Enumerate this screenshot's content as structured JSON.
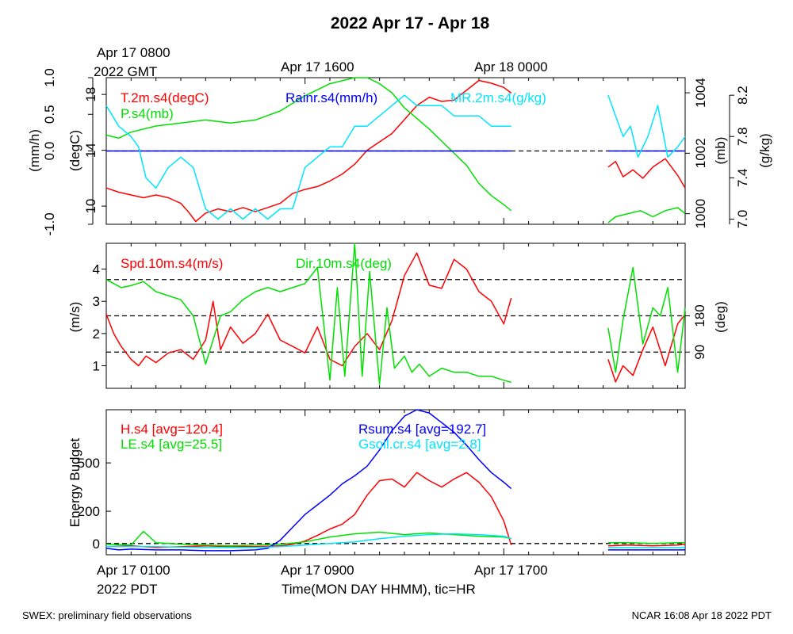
{
  "title": "2022 Apr 17 - Apr 18",
  "footer": {
    "left": "SWEX: preliminary field observations",
    "right": "NCAR 16:08 Apr 18 2022 PDT"
  },
  "top_axis": {
    "labels": [
      "Apr 17 0800",
      "Apr 17 1600",
      "Apr 18 0000"
    ],
    "sublabel": "2022 GMT"
  },
  "bottom_axis": {
    "labels": [
      "Apr 17 0100",
      "Apr 17 0900",
      "Apr 17 1700"
    ],
    "sublabel": "2022 PDT",
    "title": "Time(MON DAY HHMM), tic=HR"
  },
  "colors": {
    "red": "#ff0000",
    "green": "#00e000",
    "blue": "#0000ff",
    "cyan": "#00e5ff"
  },
  "chart_data": [
    {
      "type": "line",
      "panel": "top",
      "x_unit": "hours since Apr 17 0100 PDT",
      "xlim": [
        0,
        23.3
      ],
      "data_gap": [
        16.3,
        20.2
      ],
      "axes": [
        {
          "side": "left-outer",
          "label": "(mm/h)",
          "lim": [
            -1.0,
            1.0
          ],
          "ticks": [
            "-1.0",
            "0.0",
            "0.5",
            "1.0"
          ],
          "tick_values": [
            -1.0,
            0.0,
            0.5,
            1.0
          ]
        },
        {
          "side": "left-inner",
          "label": "(degC)",
          "lim": [
            8.7,
            19.2
          ],
          "ticks": [
            "10",
            "14",
            "18"
          ],
          "tick_values": [
            10,
            14,
            18
          ]
        },
        {
          "side": "right-inner",
          "label": "(mb)",
          "lim": [
            999.65,
            1004.5
          ],
          "ticks": [
            "1000",
            "1002",
            "1004"
          ],
          "tick_values": [
            1000,
            1002,
            1004
          ]
        },
        {
          "side": "right-outer",
          "label": "(g/kg)",
          "lim": [
            6.95,
            8.37
          ],
          "ticks": [
            "7.0",
            "7.4",
            "7.8",
            "8.2"
          ],
          "tick_values": [
            7.0,
            7.4,
            7.8,
            8.2
          ]
        }
      ],
      "series": [
        {
          "name": "T.2m.s4(degC)",
          "color": "#ff0000",
          "axis": 1,
          "x": [
            0,
            0.5,
            1,
            1.5,
            2,
            2.5,
            3,
            3.3,
            3.6,
            4,
            4.5,
            5,
            5.5,
            6,
            6.5,
            7,
            7.5,
            8,
            8.5,
            9,
            9.5,
            10,
            10.5,
            11,
            11.5,
            12,
            12.5,
            13,
            13.5,
            14,
            14.5,
            15,
            15.5,
            16,
            16.3,
            20.2,
            20.5,
            20.8,
            21.2,
            21.6,
            22,
            22.5,
            23,
            23.3
          ],
          "y": [
            11.3,
            11.0,
            10.8,
            10.6,
            10.8,
            10.6,
            10.2,
            9.6,
            8.9,
            9.5,
            9.8,
            9.6,
            9.9,
            9.6,
            9.9,
            10.2,
            10.9,
            11.2,
            11.4,
            11.8,
            12.3,
            13.0,
            14.0,
            14.6,
            15.2,
            16.2,
            17.2,
            17.8,
            17.5,
            17.6,
            18.3,
            19.0,
            18.8,
            18.5,
            18.1,
            12.8,
            13.2,
            12.1,
            12.6,
            12.0,
            12.8,
            13.4,
            12.2,
            11.3
          ]
        },
        {
          "name": "P.s4(mb)",
          "color": "#00e000",
          "axis": 2,
          "x": [
            0,
            0.5,
            1,
            2,
            3,
            4,
            5,
            6,
            7,
            8,
            9,
            10,
            10.5,
            11,
            11.5,
            12,
            13,
            14,
            14.5,
            15,
            15.5,
            16,
            16.3,
            20.2,
            20.5,
            21,
            21.5,
            22,
            22.5,
            23,
            23.3
          ],
          "y": [
            1002.6,
            1002.5,
            1002.7,
            1002.9,
            1003.0,
            1003.1,
            1003.0,
            1003.1,
            1003.4,
            1003.9,
            1004.3,
            1004.5,
            1004.5,
            1004.3,
            1004.0,
            1003.5,
            1002.8,
            1002.0,
            1001.6,
            1001.0,
            1000.6,
            1000.3,
            1000.1,
            999.7,
            999.9,
            1000.0,
            1000.1,
            999.9,
            1000.1,
            1000.2,
            1000.0
          ]
        },
        {
          "name": "Rainr.s4(mm/h)",
          "color": "#0000ff",
          "axis": 0,
          "x": [
            0,
            16.3,
            20.2,
            23.3
          ],
          "y": [
            0,
            0,
            0,
            0
          ]
        },
        {
          "name": "MR.2m.s4(g/kg)",
          "color": "#00e5ff",
          "axis": 3,
          "x": [
            0,
            0.5,
            1,
            1.3,
            1.6,
            2,
            2.5,
            3,
            3.5,
            4,
            4.5,
            5,
            5.5,
            6,
            6.5,
            7,
            7.5,
            8,
            8.5,
            9,
            9.5,
            10,
            10.5,
            11,
            11.5,
            12,
            12.5,
            13,
            13.5,
            14,
            14.5,
            15,
            15.5,
            16,
            16.3,
            20.2,
            20.5,
            20.8,
            21.1,
            21.4,
            21.8,
            22.2,
            22.6,
            23,
            23.3
          ],
          "y": [
            8.1,
            7.9,
            7.8,
            7.7,
            7.4,
            7.3,
            7.5,
            7.6,
            7.5,
            7.1,
            7.0,
            7.1,
            7.0,
            7.1,
            7.0,
            7.1,
            7.1,
            7.5,
            7.6,
            7.7,
            7.7,
            7.9,
            7.9,
            8.0,
            8.1,
            8.2,
            8.1,
            8.1,
            8.1,
            8.0,
            8.0,
            8.0,
            7.9,
            7.9,
            7.9,
            8.2,
            8.0,
            7.8,
            7.9,
            7.6,
            7.8,
            8.1,
            7.6,
            7.7,
            7.8
          ]
        }
      ]
    },
    {
      "type": "line",
      "panel": "middle",
      "x_unit": "hours since Apr 17 0100 PDT",
      "xlim": [
        0,
        23.3
      ],
      "data_gap": [
        16.3,
        20.2
      ],
      "axes": [
        {
          "side": "left",
          "label": "(m/s)",
          "lim": [
            0.3,
            4.8
          ],
          "ticks": [
            "1",
            "2",
            "3",
            "4"
          ],
          "tick_values": [
            1,
            2,
            3,
            4
          ]
        },
        {
          "side": "right",
          "label": "(deg)",
          "lim": [
            0,
            360
          ],
          "ticks": [
            "90",
            "180"
          ],
          "tick_values": [
            90,
            180
          ]
        }
      ],
      "reference_lines_deg": [
        90,
        180,
        270
      ],
      "series": [
        {
          "name": "Spd.10m.s4(m/s)",
          "color": "#ff0000",
          "axis": 0,
          "x": [
            0,
            0.3,
            0.6,
            1,
            1.3,
            1.6,
            2,
            2.5,
            3,
            3.5,
            4,
            4.3,
            4.6,
            5,
            5.5,
            6,
            6.5,
            7,
            7.5,
            8,
            8.5,
            9,
            9.5,
            10,
            10.5,
            11,
            11.5,
            12,
            12.5,
            13,
            13.5,
            14,
            14.5,
            15,
            15.5,
            16,
            16.3,
            20.2,
            20.5,
            20.8,
            21.2,
            21.6,
            22,
            22.5,
            23,
            23.3
          ],
          "y": [
            2.6,
            2.0,
            1.6,
            1.2,
            1.0,
            1.3,
            1.1,
            1.4,
            1.5,
            1.2,
            1.8,
            3.0,
            1.5,
            2.2,
            1.7,
            2.0,
            2.6,
            1.8,
            1.6,
            1.4,
            2.2,
            1.2,
            1.0,
            1.6,
            2.0,
            1.5,
            2.4,
            3.8,
            4.5,
            3.5,
            3.4,
            4.3,
            4.0,
            3.3,
            3.0,
            2.3,
            3.1,
            1.2,
            0.5,
            1.0,
            0.7,
            1.5,
            2.2,
            1.0,
            2.3,
            2.6
          ]
        },
        {
          "name": "Dir.10m.s4(deg)",
          "color": "#00e000",
          "axis": 1,
          "x": [
            0,
            0.3,
            0.6,
            1,
            1.5,
            2,
            2.5,
            3,
            3.5,
            4,
            4.3,
            4.6,
            5,
            5.5,
            6,
            6.5,
            7,
            7.5,
            8,
            8.5,
            9,
            9.3,
            9.6,
            10,
            10.3,
            10.6,
            11,
            11.3,
            11.6,
            12,
            12.3,
            12.6,
            13,
            13.5,
            14,
            14.5,
            15,
            15.5,
            16,
            16.3,
            20.2,
            20.5,
            20.8,
            21.2,
            21.6,
            22,
            22.3,
            22.6,
            23,
            23.3
          ],
          "y": [
            270,
            260,
            250,
            255,
            265,
            240,
            230,
            220,
            180,
            60,
            120,
            180,
            190,
            220,
            240,
            250,
            240,
            250,
            260,
            300,
            20,
            250,
            30,
            360,
            30,
            290,
            10,
            200,
            50,
            80,
            40,
            60,
            30,
            50,
            40,
            40,
            30,
            30,
            20,
            15,
            150,
            40,
            170,
            300,
            110,
            200,
            180,
            250,
            40,
            200
          ]
        }
      ]
    },
    {
      "type": "line",
      "panel": "bottom",
      "x_unit": "hours since Apr 17 0100 PDT",
      "xlim": [
        0,
        23.3
      ],
      "data_gap": [
        16.3,
        20.2
      ],
      "ylabel": "Energy Budget",
      "ylim": [
        -70,
        830
      ],
      "ticks": [
        "0",
        "200",
        "500"
      ],
      "tick_values": [
        0,
        200,
        500
      ],
      "series": [
        {
          "name": "H.s4",
          "legend": "H.s4 [avg=120.4]",
          "color": "#ff0000",
          "x": [
            0,
            1,
            2,
            3,
            4,
            5,
            6,
            7,
            7.5,
            8,
            8.5,
            9,
            9.5,
            10,
            10.5,
            11,
            11.5,
            12,
            12.5,
            13,
            13.5,
            14,
            14.5,
            15,
            15.5,
            16,
            16.3,
            20.2,
            21,
            22,
            23,
            23.3
          ],
          "y": [
            -20,
            -15,
            -25,
            -20,
            -15,
            -20,
            -20,
            -15,
            -5,
            15,
            50,
            90,
            120,
            180,
            300,
            390,
            400,
            350,
            440,
            390,
            350,
            400,
            440,
            380,
            290,
            140,
            -10,
            -15,
            -10,
            -15,
            -10,
            -5
          ]
        },
        {
          "name": "LE.s4",
          "legend": "LE.s4 [avg=25.5]",
          "color": "#00e000",
          "x": [
            0,
            1,
            1.5,
            2,
            3,
            4,
            5,
            6,
            7,
            8,
            9,
            10,
            11,
            12,
            13,
            14,
            15,
            16,
            16.3,
            20.2,
            21,
            22,
            23,
            23.3
          ],
          "y": [
            -5,
            -10,
            75,
            5,
            -5,
            -10,
            -15,
            -10,
            -5,
            10,
            40,
            60,
            70,
            55,
            65,
            55,
            45,
            40,
            30,
            5,
            5,
            0,
            5,
            5
          ]
        },
        {
          "name": "Rsum.s4",
          "legend": "Rsum.s4 [avg=192.7]",
          "color": "#0000ff",
          "x": [
            0,
            0.5,
            1,
            2,
            3,
            4,
            5,
            6,
            6.5,
            7,
            7.5,
            8,
            8.5,
            9,
            9.5,
            10,
            10.5,
            11,
            11.5,
            12,
            12.5,
            13,
            13.5,
            14,
            14.5,
            15,
            15.5,
            16,
            16.3,
            20.2,
            21,
            22,
            23,
            23.3
          ],
          "y": [
            -30,
            -40,
            -35,
            -40,
            -40,
            -45,
            -45,
            -40,
            -30,
            20,
            100,
            180,
            240,
            300,
            370,
            420,
            480,
            580,
            700,
            790,
            830,
            810,
            750,
            690,
            610,
            520,
            440,
            380,
            340,
            -40,
            -40,
            -40,
            -40,
            -40
          ]
        },
        {
          "name": "Gsoil.cr.s4",
          "legend": "Gsoil.cr.s4 [avg=2.8]",
          "color": "#00e5ff",
          "x": [
            0,
            2,
            4,
            6,
            7,
            8,
            9,
            10,
            11,
            12,
            13,
            14,
            15,
            16,
            16.3,
            20.2,
            21,
            22,
            23,
            23.3
          ],
          "y": [
            -20,
            -20,
            -25,
            -25,
            -20,
            -10,
            0,
            10,
            30,
            45,
            55,
            60,
            55,
            45,
            30,
            -25,
            -25,
            -25,
            -25,
            -25
          ]
        }
      ]
    }
  ]
}
